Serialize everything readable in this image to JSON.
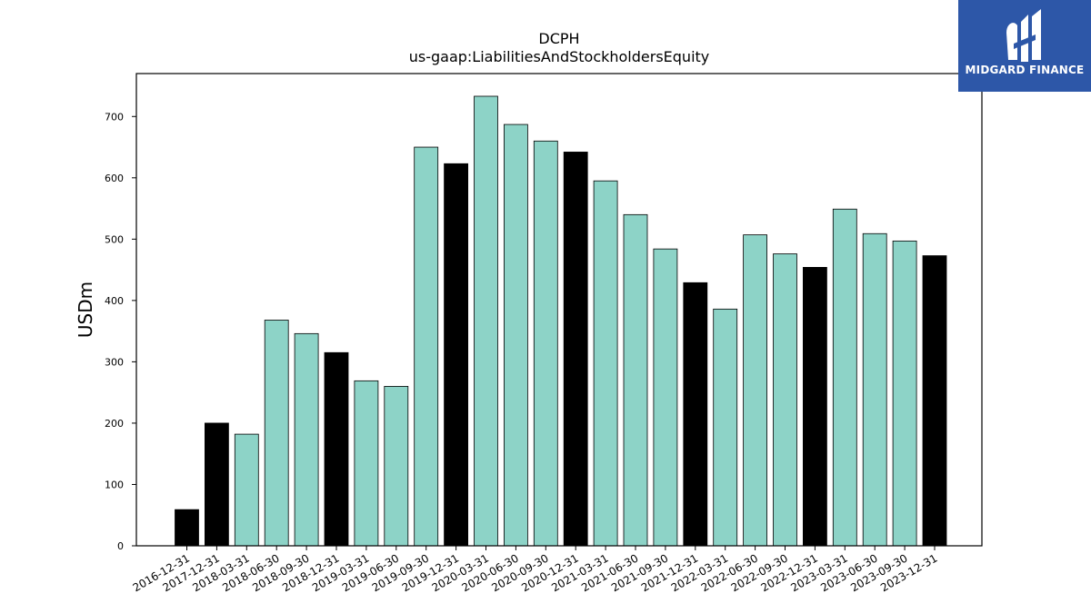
{
  "chart_data": {
    "type": "bar",
    "title": "DCPH",
    "subtitle": "us-gaap:LiabilitiesAndStockholdersEquity",
    "xlabel": "",
    "ylabel": "USDm",
    "ylim": [
      0,
      770
    ],
    "yticks": [
      0,
      100,
      200,
      300,
      400,
      500,
      600,
      700
    ],
    "grid": false,
    "categories": [
      "2016-12-31",
      "2017-12-31",
      "2018-03-31",
      "2018-06-30",
      "2018-09-30",
      "2018-12-31",
      "2019-03-31",
      "2019-06-30",
      "2019-09-30",
      "2019-12-31",
      "2020-03-31",
      "2020-06-30",
      "2020-09-30",
      "2020-12-31",
      "2021-03-31",
      "2021-06-30",
      "2021-09-30",
      "2021-12-31",
      "2022-03-31",
      "2022-06-30",
      "2022-09-30",
      "2022-12-31",
      "2023-03-31",
      "2023-06-30",
      "2023-09-30",
      "2023-12-31"
    ],
    "values": [
      59,
      200,
      182,
      368,
      346,
      315,
      269,
      260,
      650,
      623,
      733,
      687,
      660,
      642,
      595,
      540,
      484,
      429,
      386,
      507,
      476,
      454,
      549,
      509,
      497,
      473
    ],
    "bar_colors": [
      "#000000",
      "#000000",
      "#8dd3c7",
      "#8dd3c7",
      "#8dd3c7",
      "#000000",
      "#8dd3c7",
      "#8dd3c7",
      "#8dd3c7",
      "#000000",
      "#8dd3c7",
      "#8dd3c7",
      "#8dd3c7",
      "#000000",
      "#8dd3c7",
      "#8dd3c7",
      "#8dd3c7",
      "#000000",
      "#8dd3c7",
      "#8dd3c7",
      "#8dd3c7",
      "#000000",
      "#8dd3c7",
      "#8dd3c7",
      "#8dd3c7",
      "#000000"
    ]
  },
  "logo": {
    "text": "MIDGARD FINANCE",
    "background": "#2d57a8"
  }
}
